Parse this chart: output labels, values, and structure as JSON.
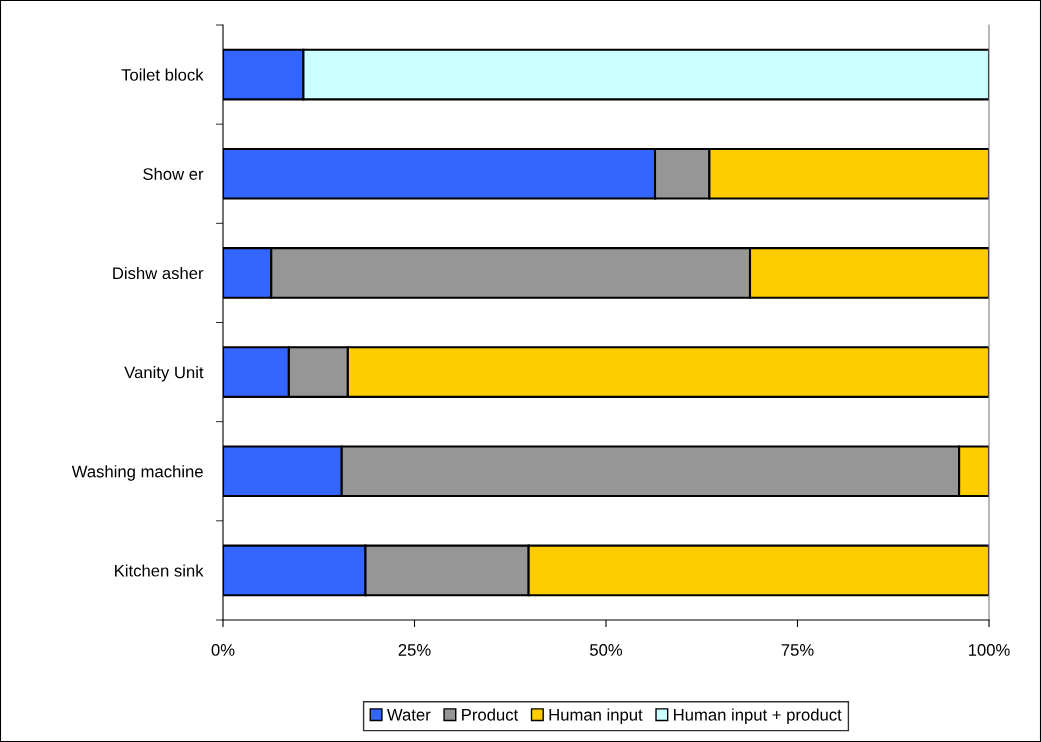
{
  "chart_data": {
    "type": "bar",
    "orientation": "horizontal",
    "stacked": true,
    "categories": [
      "Toilet block",
      "Show er",
      "Dishw asher",
      "Vanity Unit",
      "Washing machine",
      "Kitchen sink"
    ],
    "series": [
      {
        "name": "Water",
        "color": "#3366ff",
        "values": [
          10.5,
          56.4,
          6.3,
          8.6,
          15.5,
          18.6
        ]
      },
      {
        "name": "Product",
        "color": "#969696",
        "values": [
          null,
          7.1,
          62.5,
          7.7,
          80.6,
          21.3
        ]
      },
      {
        "name": "Human input",
        "color": "#ffcc00",
        "values": [
          null,
          36.5,
          31.2,
          83.7,
          3.9,
          60.1
        ]
      },
      {
        "name": "Human input + product",
        "color": "#ccffff",
        "values": [
          89.5,
          null,
          null,
          null,
          null,
          null
        ]
      }
    ],
    "xlim": [
      0,
      100
    ],
    "xticks": [
      {
        "value": 0,
        "label": "0%"
      },
      {
        "value": 25,
        "label": "25%"
      },
      {
        "value": 50,
        "label": "50%"
      },
      {
        "value": 75,
        "label": "75%"
      },
      {
        "value": 100,
        "label": "100%"
      }
    ],
    "grid": false,
    "legend": "bottom"
  }
}
